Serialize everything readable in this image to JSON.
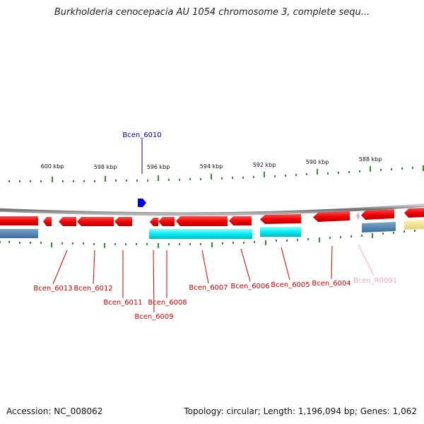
{
  "title": "Burkholderia cenocepacia AU 1054 chromosome 3, complete sequ...",
  "footer": {
    "accession": "Accession: NC_008062",
    "topology": "Topology: circular; Length: 1,196,094 bp; Genes: 1,062"
  },
  "scale": {
    "labels": [
      "600 kbp",
      "598 kbp",
      "596 kbp",
      "594 kbp",
      "592 kbp",
      "590 kbp",
      "588 kbp"
    ]
  },
  "genes": {
    "above": [
      {
        "name": "Bcen_6010",
        "color": "#00008b"
      }
    ],
    "below": [
      {
        "name": "Bcen_6013",
        "color": "#cc0000"
      },
      {
        "name": "Bcen_6012",
        "color": "#cc0000"
      },
      {
        "name": "Bcen_6011",
        "color": "#cc0000"
      },
      {
        "name": "Bcen_6008",
        "color": "#cc0000"
      },
      {
        "name": "Bcen_6009",
        "color": "#cc0000"
      },
      {
        "name": "Bcen_6007",
        "color": "#cc0000"
      },
      {
        "name": "Bcen_6006",
        "color": "#cc0000"
      },
      {
        "name": "Bcen_6005",
        "color": "#cc0000"
      },
      {
        "name": "Bcen_6004",
        "color": "#cc0000"
      },
      {
        "name": "Bcen_R0091",
        "color": "#f4a6c6"
      }
    ]
  }
}
